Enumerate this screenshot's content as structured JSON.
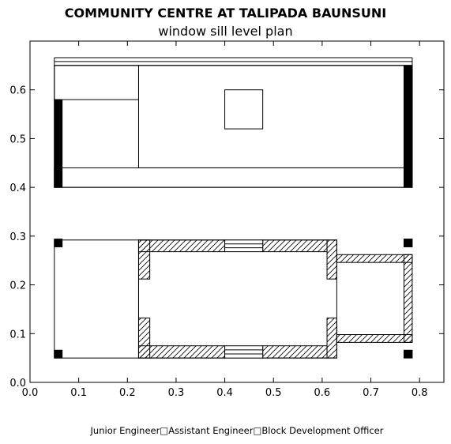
{
  "title": "COMMUNITY CENTRE AT TALIPADA BAUNSUNI",
  "subtitle": "window sill level plan",
  "footer": "Junior Engineer□Assistant Engineer□Block Development Officer",
  "colors": {
    "line": "#000000",
    "fill_solid": "#000000",
    "background": "#ffffff"
  },
  "chart_data": {
    "type": "diagram",
    "xlim": [
      0.0,
      0.85
    ],
    "ylim": [
      0.0,
      0.7
    ],
    "xticks": [
      "0.0",
      "0.1",
      "0.2",
      "0.3",
      "0.4",
      "0.5",
      "0.6",
      "0.7",
      "0.8"
    ],
    "yticks": [
      "0.0",
      "0.1",
      "0.2",
      "0.3",
      "0.4",
      "0.5",
      "0.6"
    ],
    "grid": false,
    "upper_block": {
      "strip_lines": [
        [
          [
            0.05,
            0.666
          ],
          [
            0.785,
            0.666
          ]
        ],
        [
          [
            0.05,
            0.658
          ],
          [
            0.785,
            0.658
          ]
        ],
        [
          [
            0.05,
            0.65
          ],
          [
            0.785,
            0.65
          ]
        ]
      ],
      "rects": [
        [
          0.05,
          0.4,
          0.785,
          0.65
        ],
        [
          0.05,
          0.58,
          0.223,
          0.65
        ],
        [
          0.223,
          0.44,
          0.785,
          0.65
        ],
        [
          0.05,
          0.4,
          0.785,
          0.44
        ],
        [
          0.4,
          0.52,
          0.478,
          0.6
        ]
      ],
      "vertical_lines": [
        [
          [
            0.05,
            0.65
          ],
          [
            0.05,
            0.666
          ]
        ],
        [
          [
            0.785,
            0.65
          ],
          [
            0.785,
            0.666
          ]
        ]
      ],
      "solid": [
        [
          0.05,
          0.4,
          0.066,
          0.58
        ],
        [
          0.768,
          0.4,
          0.785,
          0.65
        ]
      ]
    },
    "lower_block": {
      "rects": [
        [
          0.05,
          0.05,
          0.223,
          0.292
        ],
        [
          0.223,
          0.05,
          0.63,
          0.292
        ]
      ],
      "hatched": [
        [
          0.223,
          0.268,
          0.4,
          0.292
        ],
        [
          0.478,
          0.268,
          0.61,
          0.292
        ],
        [
          0.223,
          0.212,
          0.246,
          0.292
        ],
        [
          0.61,
          0.212,
          0.63,
          0.292
        ],
        [
          0.223,
          0.05,
          0.4,
          0.075
        ],
        [
          0.478,
          0.05,
          0.61,
          0.075
        ],
        [
          0.223,
          0.05,
          0.246,
          0.132
        ],
        [
          0.61,
          0.05,
          0.63,
          0.132
        ],
        [
          0.63,
          0.246,
          0.785,
          0.262
        ],
        [
          0.63,
          0.082,
          0.785,
          0.098
        ],
        [
          0.768,
          0.082,
          0.785,
          0.262
        ]
      ],
      "windows": [
        [
          0.4,
          0.268,
          0.478,
          0.292
        ],
        [
          0.4,
          0.05,
          0.478,
          0.075
        ]
      ],
      "columns": [
        [
          0.05,
          0.278,
          0.066,
          0.294
        ],
        [
          0.05,
          0.05,
          0.066,
          0.066
        ],
        [
          0.768,
          0.278,
          0.785,
          0.294
        ],
        [
          0.768,
          0.05,
          0.785,
          0.066
        ]
      ]
    }
  }
}
